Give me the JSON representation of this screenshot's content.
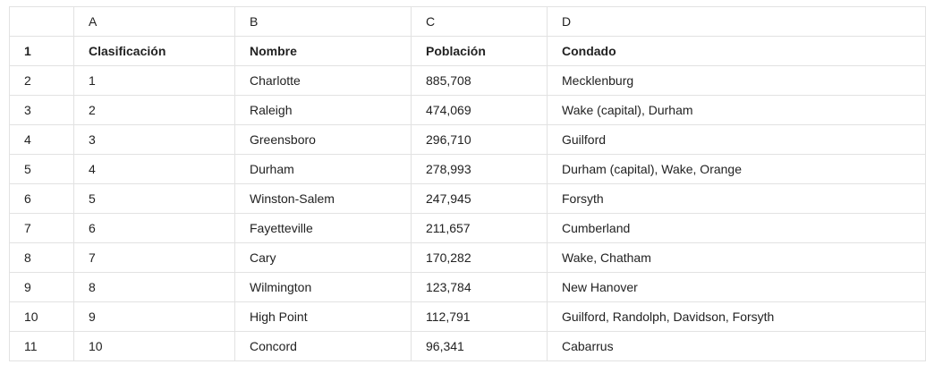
{
  "column_letters": [
    "A",
    "B",
    "C",
    "D"
  ],
  "rows": [
    {
      "num": "1",
      "cells": [
        "Clasificación",
        "Nombre",
        "Población",
        "Condado"
      ]
    },
    {
      "num": "2",
      "cells": [
        "1",
        "Charlotte",
        "885,708",
        "Mecklenburg"
      ]
    },
    {
      "num": "3",
      "cells": [
        "2",
        "Raleigh",
        "474,069",
        "Wake (capital), Durham"
      ]
    },
    {
      "num": "4",
      "cells": [
        "3",
        "Greensboro",
        "296,710",
        "Guilford"
      ]
    },
    {
      "num": "5",
      "cells": [
        "4",
        "Durham",
        "278,993",
        "Durham (capital), Wake, Orange"
      ]
    },
    {
      "num": "6",
      "cells": [
        "5",
        "Winston-Salem",
        "247,945",
        "Forsyth"
      ]
    },
    {
      "num": "7",
      "cells": [
        "6",
        "Fayetteville",
        "211,657",
        "Cumberland"
      ]
    },
    {
      "num": "8",
      "cells": [
        "7",
        "Cary",
        "170,282",
        "Wake, Chatham"
      ]
    },
    {
      "num": "9",
      "cells": [
        "8",
        "Wilmington",
        "123,784",
        "New Hanover"
      ]
    },
    {
      "num": "10",
      "cells": [
        "9",
        "High Point",
        "112,791",
        "Guilford, Randolph, Davidson, Forsyth"
      ]
    },
    {
      "num": "11",
      "cells": [
        "10",
        "Concord",
        "96,341",
        "Cabarrus"
      ]
    }
  ]
}
